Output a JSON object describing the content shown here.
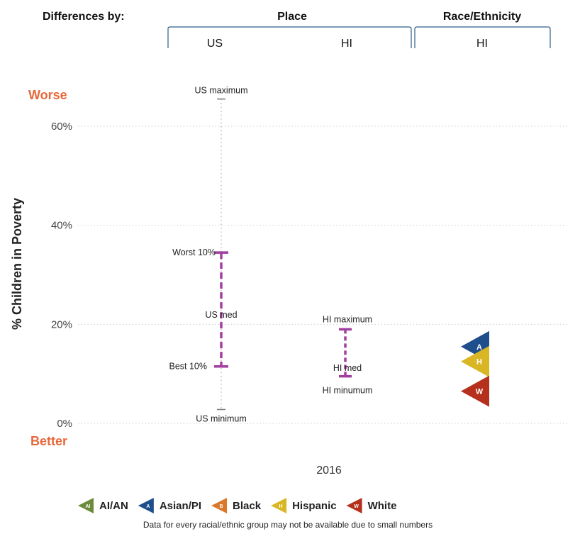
{
  "header": {
    "differences_label": "Differences by:",
    "place_label": "Place",
    "race_label": "Race/Ethnicity",
    "place_us": "US",
    "place_hi": "HI",
    "race_hi": "HI"
  },
  "chart_data": {
    "type": "range",
    "ylabel": "% Children in Poverty",
    "xlabel": "2016",
    "ylim": [
      0,
      67
    ],
    "y_ticks": [
      0,
      20,
      40,
      60
    ],
    "y_tick_labels": [
      "0%",
      "20%",
      "40%",
      "60%"
    ],
    "worse_label": "Worse",
    "better_label": "Better",
    "grid": "horizontal dotted",
    "us": {
      "maximum": 65.5,
      "worst10": 34.5,
      "median": 20.5,
      "best10": 11.5,
      "minimum": 2.8,
      "labels": {
        "maximum": "US maximum",
        "worst10": "Worst 10%",
        "median": "US med",
        "best10": "Best 10%",
        "minimum": "US minimum"
      }
    },
    "hi": {
      "maximum": 19,
      "median": 11,
      "minimum": 9.5,
      "labels": {
        "maximum": "HI maximum",
        "median": "HI med",
        "minimum": "HI minumum"
      }
    },
    "race": [
      {
        "group": "Asian/PI",
        "letter": "A",
        "value": 15.5,
        "color": "#1f4e8c"
      },
      {
        "group": "Hispanic",
        "letter": "H",
        "value": 12.5,
        "color": "#d9b724"
      },
      {
        "group": "White",
        "letter": "W",
        "value": 6.5,
        "color": "#b5311d"
      }
    ],
    "legend": [
      {
        "name": "AI/AN",
        "letter": "AI",
        "color": "#6b8c3a"
      },
      {
        "name": "Asian/PI",
        "letter": "A",
        "color": "#1f4e8c"
      },
      {
        "name": "Black",
        "letter": "B",
        "color": "#d9772b"
      },
      {
        "name": "Hispanic",
        "letter": "H",
        "color": "#d9b724"
      },
      {
        "name": "White",
        "letter": "W",
        "color": "#b5311d"
      }
    ],
    "note": "Data for every racial/ethnic group may not be available due to small numbers"
  },
  "colors": {
    "range_line": "#a33ea1",
    "worse_better": "#e8673a",
    "bracket": "#2f5d8a"
  }
}
